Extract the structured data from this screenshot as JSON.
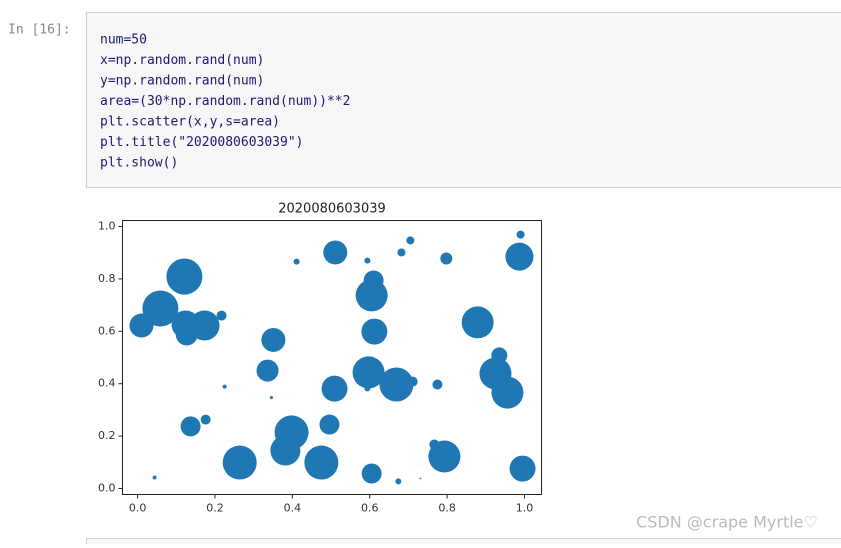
{
  "prompt": "In [16]:",
  "code": [
    "num=50",
    "x=np.random.rand(num)",
    "y=np.random.rand(num)",
    "area=(30*np.random.rand(num))**2",
    "plt.scatter(x,y,s=area)",
    "plt.title(\"2020080603039\")",
    "plt.show()"
  ],
  "watermark": "CSDN @crape Myrtle♡",
  "chart_data": {
    "type": "scatter",
    "title": "2020080603039",
    "color": "#1f77b4",
    "x": [
      0.01,
      0.059,
      0.121,
      0.124,
      0.127,
      0.173,
      0.217,
      0.351,
      0.336,
      0.225,
      0.346,
      0.137,
      0.176,
      0.044,
      0.264,
      0.382,
      0.398,
      0.411,
      0.511,
      0.496,
      0.475,
      0.509,
      0.594,
      0.61,
      0.605,
      0.612,
      0.597,
      0.669,
      0.711,
      0.605,
      0.674,
      0.682,
      0.705,
      0.798,
      0.775,
      0.767,
      0.793,
      0.731,
      0.879,
      0.935,
      0.925,
      0.956,
      0.987,
      0.99,
      0.995,
      0.594
    ],
    "y": [
      0.622,
      0.687,
      0.809,
      0.626,
      0.588,
      0.622,
      0.66,
      0.567,
      0.45,
      0.389,
      0.347,
      0.237,
      0.263,
      0.042,
      0.099,
      0.145,
      0.214,
      0.866,
      0.901,
      0.244,
      0.099,
      0.381,
      0.87,
      0.794,
      0.737,
      0.599,
      0.443,
      0.397,
      0.408,
      0.057,
      0.027,
      0.901,
      0.947,
      0.878,
      0.397,
      0.168,
      0.122,
      0.038,
      0.634,
      0.508,
      0.439,
      0.366,
      0.885,
      0.969,
      0.076,
      0.382
    ],
    "sizes": [
      357,
      804,
      804,
      486,
      300,
      558,
      62,
      357,
      300,
      10,
      6,
      248,
      62,
      10,
      717,
      558,
      717,
      22,
      357,
      248,
      717,
      419,
      22,
      248,
      635,
      419,
      635,
      717,
      62,
      248,
      22,
      40,
      40,
      89,
      62,
      62,
      635,
      2,
      635,
      159,
      635,
      635,
      486,
      40,
      419,
      22
    ],
    "xlim": [
      -0.039,
      1.044
    ],
    "ylim": [
      -0.023,
      1.023
    ],
    "xticks": [
      {
        "value": 0,
        "label": "0.0"
      },
      0.2,
      0.4,
      0.6,
      0.8,
      {
        "value": 1,
        "label": "1.0"
      }
    ],
    "yticks": [
      {
        "value": 0,
        "label": "0.0"
      },
      0.2,
      0.4,
      0.6,
      0.8,
      {
        "value": 1,
        "label": "1.0"
      }
    ]
  }
}
